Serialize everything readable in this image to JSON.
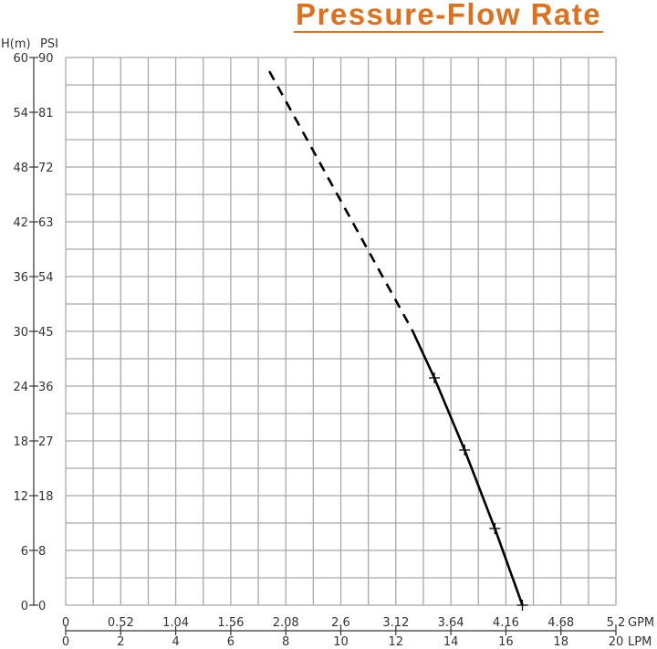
{
  "chart_data": {
    "type": "line",
    "title": "Pressure-Flow Rate",
    "title_color": "#e0711c",
    "y_left_label": "H(m)",
    "y_right_label": "PSI",
    "y_ticks_m": [
      0,
      6,
      12,
      18,
      24,
      30,
      36,
      42,
      48,
      54,
      60
    ],
    "y_ticks_psi": [
      "0",
      "8",
      "18",
      "27",
      "36",
      "45",
      "54",
      "63",
      "72",
      "81",
      "90"
    ],
    "ylim": [
      0,
      60
    ],
    "x_top_label": "GPM",
    "x_top_ticks": [
      "0",
      "0.52",
      "1.04",
      "1.56",
      "2.08",
      "2.6",
      "3.12",
      "3.64",
      "4.16",
      "4.68",
      "5.2"
    ],
    "x_bottom_label": "LPM",
    "x_bottom_ticks": [
      0,
      2,
      4,
      6,
      8,
      10,
      12,
      14,
      16,
      18,
      20
    ],
    "xlim": [
      0,
      20
    ],
    "grid": true,
    "x_grid_step_lpm": 1,
    "y_grid_step_m": 3,
    "series": [
      {
        "style": "dashed",
        "color": "#000000",
        "points": [
          [
            7.4,
            58.5
          ],
          [
            12.6,
            30.1
          ]
        ]
      },
      {
        "style": "solid",
        "color": "#000000",
        "points": [
          [
            12.6,
            30.1
          ],
          [
            13.4,
            24.9
          ],
          [
            14.5,
            17.0
          ],
          [
            15.6,
            8.4
          ],
          [
            16.6,
            0
          ]
        ]
      }
    ],
    "markers": [
      [
        13.4,
        24.9
      ],
      [
        14.5,
        17.0
      ],
      [
        15.6,
        8.4
      ],
      [
        16.6,
        0
      ]
    ]
  }
}
